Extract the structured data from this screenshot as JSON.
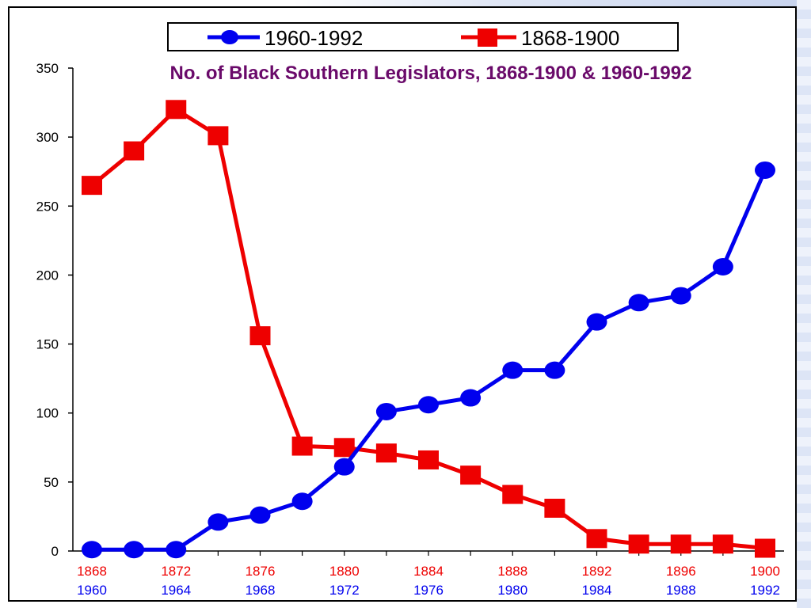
{
  "colors": {
    "series_blue": "#0000ee",
    "series_red": "#ee0000",
    "title": "#6a0a6a",
    "axis": "#000000"
  },
  "chart_data": {
    "type": "line",
    "title": "No. of Black Southern Legislators, 1868-1900 & 1960-1992",
    "xlabel": "",
    "ylabel": "",
    "ylim": [
      0,
      350
    ],
    "yticks": [
      "0",
      "50",
      "100",
      "150",
      "200",
      "250",
      "300",
      "350"
    ],
    "x_labels_top": [
      "1868",
      "1872",
      "1876",
      "1880",
      "1884",
      "1888",
      "1892",
      "1896",
      "1900"
    ],
    "x_labels_bottom": [
      "1960",
      "1964",
      "1968",
      "1972",
      "1976",
      "1980",
      "1984",
      "1988",
      "1992"
    ],
    "x_years_bottom": [
      1960,
      1962,
      1964,
      1966,
      1968,
      1970,
      1972,
      1974,
      1976,
      1978,
      1980,
      1982,
      1984,
      1986,
      1988,
      1990,
      1992
    ],
    "x_years_top": [
      1868,
      1870,
      1872,
      1874,
      1876,
      1878,
      1880,
      1882,
      1884,
      1886,
      1888,
      1890,
      1892,
      1894,
      1896,
      1898,
      1900
    ],
    "legend_position": "top",
    "grid": false,
    "series": [
      {
        "name": "1960-1992",
        "marker": "circle",
        "color": "#0000ee",
        "values": [
          1,
          1,
          1,
          21,
          26,
          36,
          61,
          101,
          106,
          111,
          131,
          131,
          166,
          180,
          185,
          206,
          276
        ]
      },
      {
        "name": "1868-1900",
        "marker": "square",
        "color": "#ee0000",
        "values": [
          265,
          290,
          320,
          301,
          156,
          76,
          75,
          71,
          66,
          55,
          41,
          31,
          9,
          5,
          5,
          5,
          2
        ]
      }
    ]
  }
}
